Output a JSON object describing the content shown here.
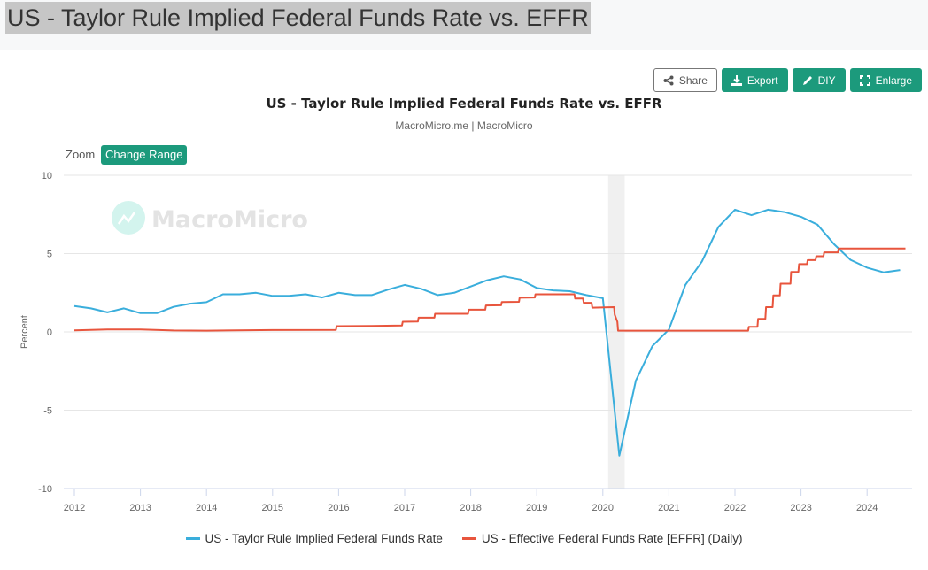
{
  "page": {
    "title": "US - Taylor Rule Implied Federal Funds Rate vs. EFFR"
  },
  "toolbar": {
    "share_label": "Share",
    "export_label": "Export",
    "diy_label": "DIY",
    "enlarge_label": "Enlarge"
  },
  "controls": {
    "zoom_label": "Zoom",
    "change_range_label": "Change Range"
  },
  "watermark": "MacroMicro",
  "colors": {
    "accent": "#1c9a7c",
    "taylor": "#3aaedc",
    "effr": "#e8553d",
    "recession": "#f0f0f0"
  },
  "chart_data": {
    "type": "line",
    "title": "US - Taylor Rule Implied Federal Funds Rate vs. EFFR",
    "subtitle": "MacroMicro.me | MacroMicro",
    "xlabel": "",
    "ylabel": "Percent",
    "xlim": [
      2012.0,
      2024.75
    ],
    "ylim": [
      -10,
      10
    ],
    "yticks": [
      10,
      5,
      0,
      -5,
      -10
    ],
    "xticks": [
      "2012",
      "2013",
      "2014",
      "2015",
      "2016",
      "2017",
      "2018",
      "2019",
      "2020",
      "2021",
      "2022",
      "2023",
      "2024"
    ],
    "grid": true,
    "legend_position": "bottom",
    "shaded_regions": [
      {
        "label": "recession",
        "from": 2020.08,
        "to": 2020.33
      }
    ],
    "series": [
      {
        "name": "US - Taylor Rule Implied Federal Funds Rate",
        "color": "#3aaedc",
        "x": [
          2012.0,
          2012.25,
          2012.5,
          2012.75,
          2013.0,
          2013.25,
          2013.5,
          2013.75,
          2014.0,
          2014.25,
          2014.5,
          2014.75,
          2015.0,
          2015.25,
          2015.5,
          2015.75,
          2016.0,
          2016.25,
          2016.5,
          2016.75,
          2017.0,
          2017.25,
          2017.5,
          2017.75,
          2018.0,
          2018.25,
          2018.5,
          2018.75,
          2019.0,
          2019.25,
          2019.5,
          2019.75,
          2020.0,
          2020.25,
          2020.5,
          2020.75,
          2021.0,
          2021.25,
          2021.5,
          2021.75,
          2022.0,
          2022.25,
          2022.5,
          2022.75,
          2023.0,
          2023.25,
          2023.5,
          2023.75,
          2024.0,
          2024.25,
          2024.5
        ],
        "values": [
          1.65,
          1.5,
          1.25,
          1.5,
          1.2,
          1.2,
          1.6,
          1.8,
          1.9,
          2.4,
          2.4,
          2.5,
          2.3,
          2.3,
          2.4,
          2.2,
          2.5,
          2.35,
          2.35,
          2.7,
          3.0,
          2.75,
          2.35,
          2.5,
          2.9,
          3.3,
          3.55,
          3.35,
          2.8,
          2.65,
          2.6,
          2.35,
          2.15,
          -7.9,
          -3.1,
          -0.9,
          0.15,
          3.0,
          4.5,
          6.7,
          7.8,
          7.45,
          7.8,
          7.65,
          7.35,
          6.85,
          5.6,
          4.6,
          4.1,
          3.8,
          3.95
        ]
      },
      {
        "name": "US - Effective Federal Funds Rate [EFFR] (Daily)",
        "color": "#e8553d",
        "x": [
          2012.0,
          2012.5,
          2013.0,
          2013.5,
          2014.0,
          2015.0,
          2015.96,
          2015.97,
          2016.5,
          2016.96,
          2016.97,
          2017.2,
          2017.21,
          2017.45,
          2017.46,
          2017.96,
          2017.97,
          2018.22,
          2018.23,
          2018.46,
          2018.47,
          2018.73,
          2018.74,
          2018.97,
          2018.98,
          2019.57,
          2019.58,
          2019.7,
          2019.71,
          2019.83,
          2019.84,
          2020.17,
          2020.18,
          2020.22,
          2020.23,
          2021.0,
          2022.0,
          2022.2,
          2022.21,
          2022.34,
          2022.35,
          2022.46,
          2022.47,
          2022.57,
          2022.58,
          2022.68,
          2022.69,
          2022.84,
          2022.85,
          2022.96,
          2022.97,
          2023.09,
          2023.1,
          2023.22,
          2023.23,
          2023.34,
          2023.35,
          2023.56,
          2023.57,
          2024.58
        ],
        "values": [
          0.1,
          0.15,
          0.15,
          0.09,
          0.08,
          0.12,
          0.13,
          0.37,
          0.38,
          0.41,
          0.65,
          0.66,
          0.91,
          0.91,
          1.16,
          1.16,
          1.42,
          1.42,
          1.69,
          1.7,
          1.91,
          1.92,
          2.18,
          2.2,
          2.4,
          2.4,
          2.13,
          2.13,
          1.86,
          1.86,
          1.55,
          1.58,
          1.1,
          0.65,
          0.08,
          0.08,
          0.08,
          0.08,
          0.33,
          0.33,
          0.83,
          0.83,
          1.58,
          1.58,
          2.33,
          2.33,
          3.08,
          3.08,
          3.83,
          3.83,
          4.33,
          4.33,
          4.58,
          4.58,
          4.83,
          4.83,
          5.08,
          5.08,
          5.33,
          5.33
        ]
      }
    ]
  }
}
